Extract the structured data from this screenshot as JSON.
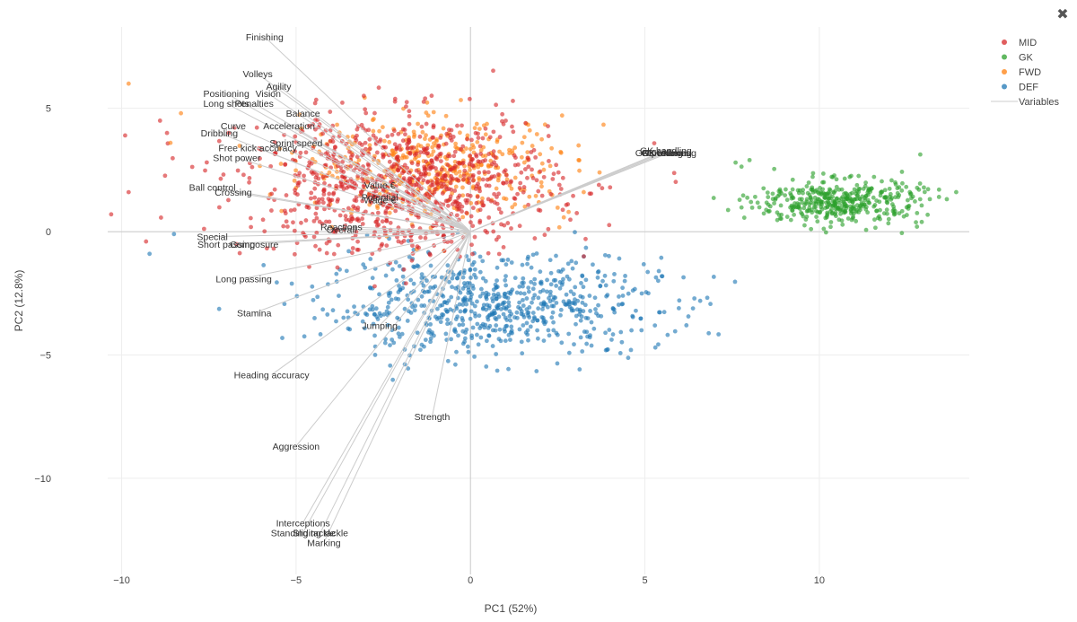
{
  "toolbar": {
    "close_icon": "close-icon",
    "close_glyph": "✖"
  },
  "chart_data": {
    "type": "scatter",
    "title": "",
    "xlabel": "PC1 (52%)",
    "ylabel": "PC2 (12.8%)",
    "xlim": [
      -10.4,
      14.3
    ],
    "ylim": [
      -13.9,
      8.3
    ],
    "xticks": [
      -10,
      -5,
      0,
      5,
      10
    ],
    "yticks": [
      -10,
      -5,
      0,
      5
    ],
    "x_tick_labels": [
      "−10",
      "−5",
      "0",
      "5",
      "10"
    ],
    "y_tick_labels": [
      "−10",
      "−5",
      "0",
      "5"
    ],
    "grid": true,
    "legend_position": "top-right",
    "legend": [
      "MID",
      "GK",
      "FWD",
      "DEF",
      "Variables"
    ],
    "colors": {
      "MID": "#d62728",
      "GK": "#2ca02c",
      "FWD": "#ff7f0e",
      "DEF": "#1f77b4",
      "Variables": "#cccccc"
    },
    "clusters": [
      {
        "name": "DEF",
        "center": [
          0.6,
          -3.0
        ],
        "spread": [
          2.4,
          1.0
        ],
        "count": 700
      },
      {
        "name": "FWD",
        "center": [
          -0.9,
          2.6
        ],
        "spread": [
          1.9,
          1.0
        ],
        "count": 420
      },
      {
        "name": "MID",
        "center": [
          -2.0,
          1.9
        ],
        "spread": [
          2.2,
          1.4
        ],
        "count": 900
      },
      {
        "name": "GK",
        "center": [
          10.6,
          1.2
        ],
        "spread": [
          1.2,
          0.45
        ],
        "count": 420
      }
    ],
    "outliers": [
      {
        "series": "MID",
        "x": -11.8,
        "y": 7.1
      },
      {
        "series": "FWD",
        "x": -9.8,
        "y": 6.0
      },
      {
        "series": "MID",
        "x": -9.9,
        "y": 3.9
      },
      {
        "series": "MID",
        "x": -9.8,
        "y": 1.6
      },
      {
        "series": "MID",
        "x": -10.3,
        "y": 0.7
      },
      {
        "series": "DEF",
        "x": -9.2,
        "y": -0.9
      },
      {
        "series": "MID",
        "x": -9.3,
        "y": -0.4
      },
      {
        "series": "DEF",
        "x": -8.5,
        "y": -0.1
      },
      {
        "series": "MID",
        "x": -8.7,
        "y": 4.0
      },
      {
        "series": "FWD",
        "x": -8.3,
        "y": 4.8
      },
      {
        "series": "FWD",
        "x": -8.6,
        "y": 3.6
      },
      {
        "series": "MID",
        "x": -8.9,
        "y": 4.5
      },
      {
        "series": "FWD",
        "x": 3.7,
        "y": 2.4
      },
      {
        "series": "FWD",
        "x": 3.1,
        "y": 2.9
      },
      {
        "series": "MID",
        "x": 3.3,
        "y": -0.3
      },
      {
        "series": "DEF",
        "x": 5.3,
        "y": -4.7
      },
      {
        "series": "DEF",
        "x": 4.6,
        "y": -4.8
      },
      {
        "series": "DEF",
        "x": 5.1,
        "y": -2.5
      },
      {
        "series": "DEF",
        "x": 5.4,
        "y": -1.6
      },
      {
        "series": "GK",
        "x": 8.0,
        "y": 2.9
      },
      {
        "series": "GK",
        "x": 7.6,
        "y": 2.8
      },
      {
        "series": "GK",
        "x": 12.8,
        "y": 0.2
      }
    ],
    "variables": [
      {
        "label": "Finishing",
        "x": -5.9,
        "y": 7.9
      },
      {
        "label": "Volleys",
        "x": -6.1,
        "y": 6.4
      },
      {
        "label": "Agility",
        "x": -5.5,
        "y": 5.9
      },
      {
        "label": "Positioning",
        "x": -7.0,
        "y": 5.6
      },
      {
        "label": "Vision",
        "x": -5.8,
        "y": 5.6
      },
      {
        "label": "Long shots",
        "x": -7.0,
        "y": 5.2
      },
      {
        "label": "Penalties",
        "x": -6.2,
        "y": 5.2
      },
      {
        "label": "Balance",
        "x": -4.8,
        "y": 4.8
      },
      {
        "label": "Curve",
        "x": -6.8,
        "y": 4.3
      },
      {
        "label": "Acceleration",
        "x": -5.2,
        "y": 4.3
      },
      {
        "label": "Dribbling",
        "x": -7.2,
        "y": 4.0
      },
      {
        "label": "Sprint speed",
        "x": -5.0,
        "y": 3.6
      },
      {
        "label": "Free kick accuracy",
        "x": -6.1,
        "y": 3.4
      },
      {
        "label": "Shot power",
        "x": -6.7,
        "y": 3.0
      },
      {
        "label": "Value €",
        "x": -2.6,
        "y": 1.9
      },
      {
        "label": "Ball control",
        "x": -7.4,
        "y": 1.8
      },
      {
        "label": "Crossing",
        "x": -6.8,
        "y": 1.6
      },
      {
        "label": "Potential",
        "x": -2.6,
        "y": 1.4
      },
      {
        "label": "Wage €",
        "x": -2.6,
        "y": 1.3
      },
      {
        "label": "Reactions",
        "x": -3.7,
        "y": 0.2
      },
      {
        "label": "Overall",
        "x": -3.7,
        "y": 0.1
      },
      {
        "label": "Special",
        "x": -7.4,
        "y": -0.2
      },
      {
        "label": "Short passing",
        "x": -7.0,
        "y": -0.5
      },
      {
        "label": "Composure",
        "x": -6.2,
        "y": -0.5
      },
      {
        "label": "Long passing",
        "x": -6.5,
        "y": -1.9
      },
      {
        "label": "Stamina",
        "x": -6.2,
        "y": -3.3
      },
      {
        "label": "Jumping",
        "x": -2.6,
        "y": -3.8
      },
      {
        "label": "Heading accuracy",
        "x": -5.7,
        "y": -5.8
      },
      {
        "label": "Strength",
        "x": -1.1,
        "y": -7.5
      },
      {
        "label": "Aggression",
        "x": -5.0,
        "y": -8.7
      },
      {
        "label": "Interceptions",
        "x": -4.8,
        "y": -11.8
      },
      {
        "label": "Standing tackle",
        "x": -4.8,
        "y": -12.2
      },
      {
        "label": "Sliding tackle",
        "x": -4.3,
        "y": -12.2
      },
      {
        "label": "Marking",
        "x": -4.2,
        "y": -12.6
      },
      {
        "label": "GK diving",
        "x": 5.5,
        "y": 3.2
      },
      {
        "label": "GK reflexes",
        "x": 5.6,
        "y": 3.2
      },
      {
        "label": "GK handling",
        "x": 5.6,
        "y": 3.3
      },
      {
        "label": "GK positioning",
        "x": 5.6,
        "y": 3.2
      },
      {
        "label": "GK kicking",
        "x": 5.7,
        "y": 3.2
      }
    ]
  }
}
